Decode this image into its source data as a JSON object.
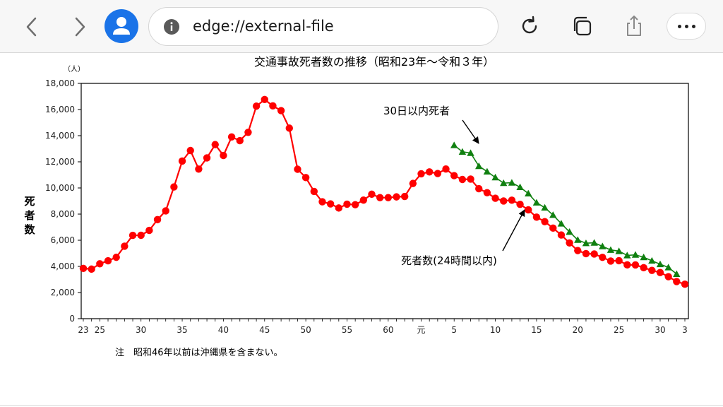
{
  "browser": {
    "url": "edge://external-file",
    "icons": [
      "back-icon",
      "forward-icon",
      "profile-icon",
      "info-icon",
      "refresh-icon",
      "tabs-icon",
      "share-icon",
      "more-icon"
    ],
    "accent_color": "#1a73e8"
  },
  "chart_data": {
    "type": "line",
    "title": "交通事故死者数の推移（昭和23年～令和３年）",
    "unit_label": "（人）",
    "ylabel": "死者数",
    "ylim": [
      0,
      18000
    ],
    "y_ticks": [
      "0",
      "2,000",
      "4,000",
      "6,000",
      "8,000",
      "10,000",
      "12,000",
      "14,000",
      "16,000",
      "18,000"
    ],
    "x_years_start": 1948,
    "x_years_end": 2021,
    "x_tick_labels": [
      {
        "year": 1948,
        "label": "23"
      },
      {
        "year": 1950,
        "label": "25"
      },
      {
        "year": 1955,
        "label": "30"
      },
      {
        "year": 1960,
        "label": "35"
      },
      {
        "year": 1965,
        "label": "40"
      },
      {
        "year": 1970,
        "label": "45"
      },
      {
        "year": 1975,
        "label": "50"
      },
      {
        "year": 1980,
        "label": "55"
      },
      {
        "year": 1985,
        "label": "60"
      },
      {
        "year": 1989,
        "label": "元"
      },
      {
        "year": 1993,
        "label": "5"
      },
      {
        "year": 1998,
        "label": "10"
      },
      {
        "year": 2003,
        "label": "15"
      },
      {
        "year": 2008,
        "label": "20"
      },
      {
        "year": 2013,
        "label": "25"
      },
      {
        "year": 2018,
        "label": "30"
      },
      {
        "year": 2021,
        "label": "3"
      }
    ],
    "series": [
      {
        "name": "死者数(24時間以内)",
        "color": "#ff0000",
        "marker": "circle",
        "x_start": 1948,
        "values": [
          3848,
          3790,
          4202,
          4429,
          4696,
          5544,
          6374,
          6379,
          6751,
          7575,
          8248,
          10079,
          12055,
          12865,
          11445,
          12301,
          13318,
          12484,
          13904,
          13618,
          14256,
          16257,
          16765,
          16278,
          15918,
          14574,
          11432,
          10792,
          9734,
          8945,
          8783,
          8466,
          8760,
          8719,
          9073,
          9520,
          9262,
          9261,
          9317,
          9347,
          10344,
          11086,
          11227,
          11105,
          11451,
          10942,
          10649,
          10679,
          9942,
          9640,
          9211,
          9006,
          9066,
          8747,
          8326,
          7768,
          7425,
          6927,
          6403,
          5796,
          5209,
          4979,
          4948,
          4691,
          4411,
          4438,
          4117,
          4113,
          3904,
          3694,
          3532,
          3215,
          2839,
          2636
        ]
      },
      {
        "name": "30日以内死者",
        "color": "#108010",
        "marker": "triangle",
        "x_start": 1993,
        "values": [
          13269,
          12768,
          12670,
          11674,
          11254,
          10805,
          10372,
          10403,
          10060,
          9575,
          8877,
          8492,
          7931,
          7272,
          6639,
          6023,
          5772,
          5806,
          5535,
          5261,
          5165,
          4838,
          4885,
          4698,
          4431,
          4166,
          3920,
          3416
        ]
      }
    ],
    "annotations": [
      "30日以内死者",
      "死者数(24時間以内)"
    ],
    "note": "注　昭和46年以前は沖縄県を含まない。"
  }
}
